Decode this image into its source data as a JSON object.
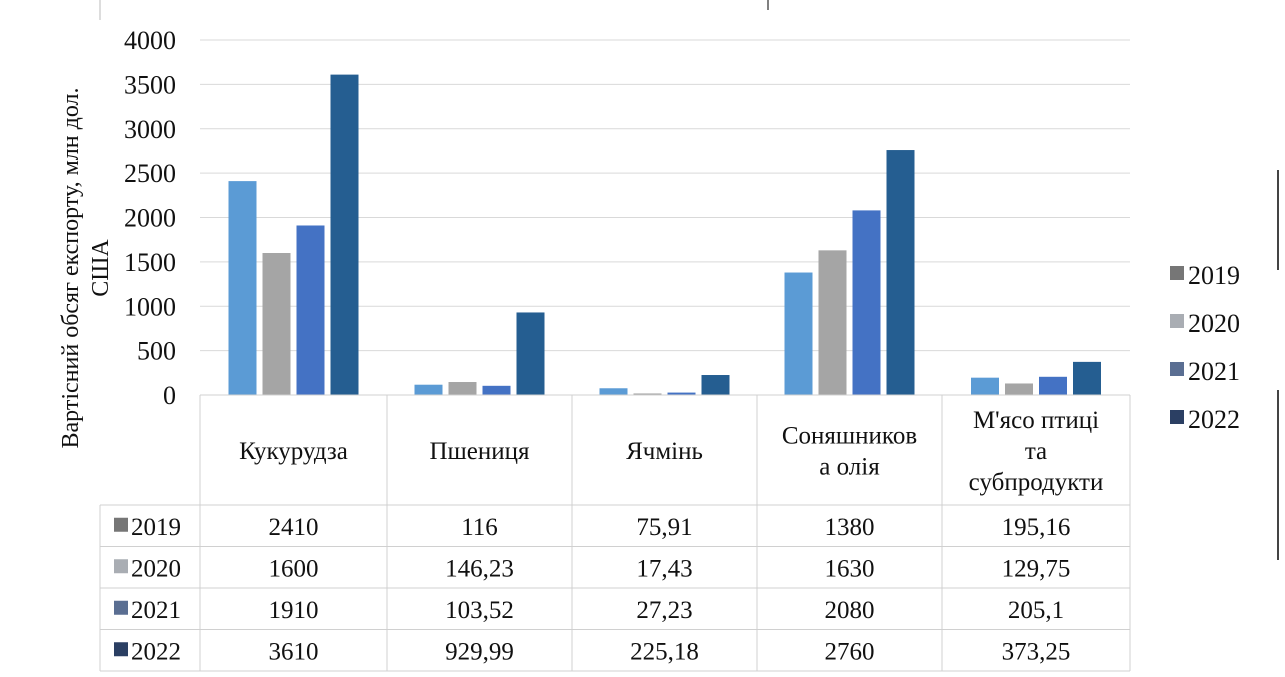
{
  "chart_data": {
    "type": "bar",
    "title": "",
    "xlabel": "",
    "ylabel_lines": [
      "Вартісний обсяг експорту, млн дол.",
      "США"
    ],
    "ylim": [
      0,
      4000
    ],
    "yticks": [
      0,
      500,
      1000,
      1500,
      2000,
      2500,
      3000,
      3500,
      4000
    ],
    "grid": true,
    "legend_position": "right",
    "categories": [
      [
        "Кукурудза"
      ],
      [
        "Пшениця"
      ],
      [
        "Ячмінь"
      ],
      [
        "Соняшников",
        "а олія"
      ],
      [
        "М'ясо птиці",
        "та",
        "субпродукти"
      ]
    ],
    "series": [
      {
        "name": "2019",
        "color": "#5b9bd5",
        "legend_color": "#767676",
        "values": [
          2410,
          116,
          75.91,
          1380,
          195.16
        ],
        "labels": [
          "2410",
          "116",
          "75,91",
          "1380",
          "195,16"
        ]
      },
      {
        "name": "2020",
        "color": "#a5a5a5",
        "legend_color": "#a9adb3",
        "values": [
          1600,
          146.23,
          17.43,
          1630,
          129.75
        ],
        "labels": [
          "1600",
          "146,23",
          "17,43",
          "1630",
          "129,75"
        ]
      },
      {
        "name": "2021",
        "color": "#4472c4",
        "legend_color": "#5a6e92",
        "values": [
          1910,
          103.52,
          27.23,
          2080,
          205.1
        ],
        "labels": [
          "1910",
          "103,52",
          "27,23",
          "2080",
          "205,1"
        ]
      },
      {
        "name": "2022",
        "color": "#255e91",
        "legend_color": "#2b3f63",
        "values": [
          3610,
          929.99,
          225.18,
          2760,
          373.25
        ],
        "labels": [
          "3610",
          "929,99",
          "225,18",
          "2760",
          "373,25"
        ]
      }
    ]
  }
}
